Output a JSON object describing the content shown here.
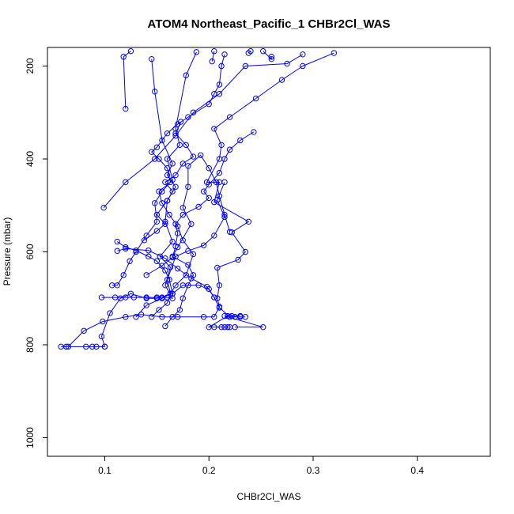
{
  "chart_data": {
    "type": "line",
    "title": "ATOM4 Northeast_Pacific_1 CHBr2Cl_WAS",
    "xlabel": "CHBr2Cl_WAS",
    "ylabel": "Pressure (mbar)",
    "xlim": [
      0.045,
      0.47
    ],
    "ylim": [
      1040,
      160
    ],
    "y_reversed": true,
    "grid": false,
    "legend": "none",
    "color": "#0000ff",
    "x_ticks": [
      {
        "value": 0.1,
        "label": "0.1"
      },
      {
        "value": 0.2,
        "label": "0.2"
      },
      {
        "value": 0.3,
        "label": "0.3"
      },
      {
        "value": 0.4,
        "label": "0.4"
      }
    ],
    "y_ticks": [
      {
        "value": 200,
        "label": "200"
      },
      {
        "value": 400,
        "label": "400"
      },
      {
        "value": 600,
        "label": "600"
      },
      {
        "value": 800,
        "label": "800"
      },
      {
        "value": 1000,
        "label": "1000"
      }
    ],
    "series": [
      {
        "points": [
          [
            0.058,
            804
          ],
          [
            0.063,
            804
          ],
          [
            0.082,
            804
          ],
          [
            0.088,
            804
          ],
          [
            0.092,
            804
          ],
          [
            0.1,
            804
          ],
          [
            0.1,
            804
          ],
          [
            0.097,
            782
          ],
          [
            0.105,
            732
          ],
          [
            0.115,
            700
          ],
          [
            0.125,
            690
          ],
          [
            0.14,
            700
          ],
          [
            0.15,
            700
          ],
          [
            0.155,
            698
          ],
          [
            0.165,
            690
          ],
          [
            0.175,
            672
          ],
          [
            0.19,
            672
          ],
          [
            0.2,
            680
          ],
          [
            0.205,
            698
          ],
          [
            0.21,
            720
          ],
          [
            0.22,
            740
          ],
          [
            0.225,
            740
          ],
          [
            0.23,
            740
          ],
          [
            0.235,
            740
          ]
        ]
      },
      {
        "points": [
          [
            0.065,
            804
          ],
          [
            0.08,
            770
          ],
          [
            0.098,
            750
          ],
          [
            0.12,
            740
          ],
          [
            0.135,
            735
          ],
          [
            0.155,
            740
          ],
          [
            0.17,
            740
          ],
          [
            0.195,
            740
          ],
          [
            0.205,
            740
          ],
          [
            0.21,
            718
          ],
          [
            0.208,
            700
          ],
          [
            0.21,
            672
          ],
          [
            0.208,
            634
          ],
          [
            0.228,
            617
          ],
          [
            0.235,
            600
          ],
          [
            0.222,
            558
          ],
          [
            0.238,
            535
          ],
          [
            0.205,
            493
          ],
          [
            0.21,
            450
          ],
          [
            0.198,
            450
          ],
          [
            0.21,
            400
          ],
          [
            0.212,
            370
          ],
          [
            0.205,
            335
          ],
          [
            0.22,
            310
          ],
          [
            0.245,
            270
          ],
          [
            0.27,
            230
          ],
          [
            0.29,
            200
          ],
          [
            0.32,
            172
          ]
        ]
      },
      {
        "points": [
          [
            0.097,
            698
          ],
          [
            0.11,
            698
          ],
          [
            0.12,
            698
          ],
          [
            0.128,
            698
          ],
          [
            0.14,
            698
          ],
          [
            0.15,
            698
          ],
          [
            0.16,
            698
          ],
          [
            0.165,
            700
          ],
          [
            0.158,
            672
          ],
          [
            0.163,
            633
          ],
          [
            0.153,
            610
          ],
          [
            0.165,
            578
          ],
          [
            0.158,
            535
          ],
          [
            0.16,
            490
          ],
          [
            0.168,
            460
          ],
          [
            0.16,
            435
          ],
          [
            0.165,
            410
          ],
          [
            0.155,
            360
          ],
          [
            0.148,
            255
          ],
          [
            0.145,
            185
          ]
        ]
      },
      {
        "points": [
          [
            0.107,
            672
          ],
          [
            0.112,
            672
          ],
          [
            0.118,
            650
          ],
          [
            0.124,
            620
          ],
          [
            0.13,
            600
          ],
          [
            0.14,
            565
          ],
          [
            0.15,
            535
          ],
          [
            0.148,
            495
          ],
          [
            0.155,
            470
          ],
          [
            0.165,
            445
          ],
          [
            0.16,
            400
          ],
          [
            0.172,
            370
          ],
          [
            0.168,
            335
          ],
          [
            0.178,
            220
          ],
          [
            0.188,
            170
          ]
        ]
      },
      {
        "points": [
          [
            0.112,
            598
          ],
          [
            0.12,
            593
          ],
          [
            0.142,
            597
          ],
          [
            0.158,
            614
          ],
          [
            0.17,
            636
          ],
          [
            0.183,
            657
          ],
          [
            0.198,
            675
          ],
          [
            0.205,
            698
          ]
        ]
      },
      {
        "points": [
          [
            0.112,
            578
          ],
          [
            0.12,
            590
          ],
          [
            0.13,
            597
          ],
          [
            0.142,
            610
          ],
          [
            0.15,
            620
          ],
          [
            0.158,
            640
          ],
          [
            0.162,
            660
          ],
          [
            0.165,
            690
          ]
        ]
      },
      {
        "points": [
          [
            0.099,
            505
          ],
          [
            0.12,
            450
          ],
          [
            0.148,
            400
          ],
          [
            0.168,
            350
          ],
          [
            0.185,
            300
          ],
          [
            0.21,
            260
          ],
          [
            0.235,
            200
          ],
          [
            0.275,
            195
          ],
          [
            0.29,
            175
          ]
        ]
      },
      {
        "points": [
          [
            0.158,
            760
          ],
          [
            0.165,
            740
          ],
          [
            0.172,
            725
          ],
          [
            0.175,
            700
          ],
          [
            0.18,
            672
          ],
          [
            0.185,
            650
          ],
          [
            0.18,
            628
          ],
          [
            0.165,
            610
          ],
          [
            0.17,
            590
          ],
          [
            0.183,
            540
          ],
          [
            0.175,
            505
          ],
          [
            0.18,
            460
          ],
          [
            0.18,
            415
          ],
          [
            0.192,
            392
          ],
          [
            0.2,
            420
          ],
          [
            0.207,
            450
          ],
          [
            0.21,
            480
          ],
          [
            0.215,
            520
          ],
          [
            0.22,
            557
          ]
        ]
      },
      {
        "points": [
          [
            0.215,
            762
          ],
          [
            0.22,
            762
          ],
          [
            0.218,
            762
          ],
          [
            0.212,
            762
          ],
          [
            0.205,
            762
          ],
          [
            0.2,
            762
          ],
          [
            0.218,
            738
          ],
          [
            0.222,
            738
          ],
          [
            0.23,
            738
          ],
          [
            0.215,
            738
          ],
          [
            0.252,
            762
          ],
          [
            0.225,
            762
          ]
        ]
      },
      {
        "points": [
          [
            0.13,
            740
          ],
          [
            0.14,
            715
          ],
          [
            0.155,
            700
          ],
          [
            0.163,
            690
          ],
          [
            0.168,
            672
          ],
          [
            0.178,
            650
          ],
          [
            0.185,
            605
          ],
          [
            0.175,
            575
          ],
          [
            0.17,
            545
          ],
          [
            0.162,
            520
          ],
          [
            0.155,
            495
          ],
          [
            0.152,
            470
          ],
          [
            0.163,
            450
          ],
          [
            0.16,
            420
          ],
          [
            0.152,
            400
          ],
          [
            0.145,
            385
          ],
          [
            0.15,
            375
          ],
          [
            0.16,
            345
          ],
          [
            0.17,
            325
          ],
          [
            0.18,
            310
          ],
          [
            0.2,
            282
          ],
          [
            0.205,
            260
          ],
          [
            0.21,
            240
          ],
          [
            0.212,
            200
          ],
          [
            0.215,
            175
          ]
        ]
      },
      {
        "points": [
          [
            0.12,
            292
          ],
          [
            0.118,
            180
          ],
          [
            0.125,
            168
          ]
        ]
      },
      {
        "points": [
          [
            0.203,
            190
          ],
          [
            0.205,
            168
          ]
        ]
      },
      {
        "points": [
          [
            0.24,
            168
          ],
          [
            0.238,
            172
          ]
        ]
      },
      {
        "points": [
          [
            0.252,
            168
          ],
          [
            0.26,
            185
          ],
          [
            0.26,
            180
          ]
        ]
      },
      {
        "points": [
          [
            0.14,
            650
          ],
          [
            0.155,
            630
          ],
          [
            0.165,
            612
          ],
          [
            0.168,
            588
          ],
          [
            0.17,
            560
          ],
          [
            0.168,
            540
          ],
          [
            0.175,
            520
          ],
          [
            0.19,
            503
          ],
          [
            0.2,
            484
          ],
          [
            0.195,
            470
          ],
          [
            0.2,
            455
          ],
          [
            0.21,
            430
          ],
          [
            0.215,
            400
          ],
          [
            0.22,
            380
          ],
          [
            0.23,
            360
          ],
          [
            0.243,
            342
          ]
        ]
      },
      {
        "points": [
          [
            0.145,
            740
          ],
          [
            0.152,
            725
          ],
          [
            0.16,
            710
          ],
          [
            0.163,
            690
          ],
          [
            0.16,
            660
          ],
          [
            0.168,
            610
          ],
          [
            0.18,
            598
          ],
          [
            0.195,
            586
          ],
          [
            0.205,
            565
          ],
          [
            0.215,
            525
          ],
          [
            0.208,
            488
          ],
          [
            0.215,
            450
          ]
        ]
      },
      {
        "points": [
          [
            0.138,
            575
          ],
          [
            0.15,
            555
          ],
          [
            0.158,
            540
          ],
          [
            0.15,
            520
          ],
          [
            0.16,
            490
          ],
          [
            0.165,
            470
          ],
          [
            0.158,
            450
          ],
          [
            0.168,
            435
          ],
          [
            0.175,
            410
          ],
          [
            0.185,
            395
          ],
          [
            0.178,
            370
          ],
          [
            0.168,
            345
          ],
          [
            0.173,
            320
          ]
        ]
      }
    ]
  }
}
